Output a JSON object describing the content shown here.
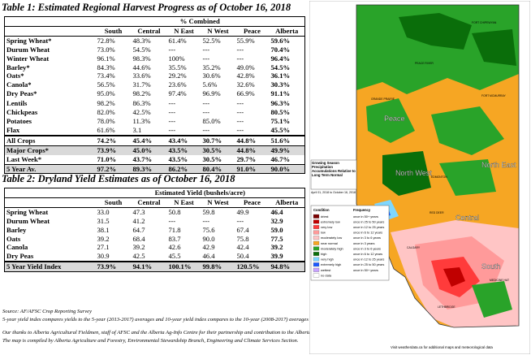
{
  "table1": {
    "title": "Table 1: Estimated Regional Harvest Progress as of October 16, 2018",
    "group_header": "% Combined",
    "columns": [
      "South",
      "Central",
      "N East",
      "N West",
      "Peace",
      "Alberta"
    ],
    "rows": [
      {
        "crop": "Spring Wheat*",
        "values": [
          "72.8%",
          "48.3%",
          "61.4%",
          "52.5%",
          "55.9%",
          "59.6%"
        ]
      },
      {
        "crop": "Durum Wheat",
        "values": [
          "73.0%",
          "54.5%",
          "---",
          "---",
          "---",
          "70.4%"
        ]
      },
      {
        "crop": "Winter Wheat",
        "values": [
          "96.1%",
          "98.3%",
          "100%",
          "---",
          "---",
          "96.4%"
        ]
      },
      {
        "crop": "Barley*",
        "values": [
          "84.3%",
          "44.6%",
          "35.5%",
          "35.2%",
          "49.0%",
          "54.5%"
        ]
      },
      {
        "crop": "Oats*",
        "values": [
          "73.4%",
          "33.6%",
          "29.2%",
          "30.6%",
          "42.8%",
          "36.1%"
        ]
      },
      {
        "crop": "Canola*",
        "values": [
          "56.5%",
          "31.7%",
          "23.6%",
          "5.6%",
          "32.6%",
          "30.3%"
        ]
      },
      {
        "crop": "Dry Peas*",
        "values": [
          "95.0%",
          "98.2%",
          "97.4%",
          "96.9%",
          "66.9%",
          "91.1%"
        ]
      },
      {
        "crop": "Lentils",
        "values": [
          "98.2%",
          "86.3%",
          "---",
          "---",
          "---",
          "96.3%"
        ]
      },
      {
        "crop": "Chickpeas",
        "values": [
          "82.0%",
          "42.5%",
          "---",
          "---",
          "---",
          "80.5%"
        ]
      },
      {
        "crop": "Potatoes",
        "values": [
          "78.0%",
          "11.3%",
          "---",
          "85.0%",
          "---",
          "75.1%"
        ]
      },
      {
        "crop": "Flax",
        "values": [
          "61.6%",
          "3.1",
          "---",
          "---",
          "---",
          "45.5%"
        ]
      }
    ],
    "totals": [
      {
        "label": "All Crops",
        "values": [
          "74.2%",
          "45.4%",
          "43.4%",
          "30.7%",
          "44.8%",
          "51.6%"
        ]
      },
      {
        "label": "Major Crops*",
        "values": [
          "73.9%",
          "45.0%",
          "43.5%",
          "30.5%",
          "44.8%",
          "49.9%"
        ]
      },
      {
        "label": "Last Week*",
        "values": [
          "71.0%",
          "43.7%",
          "43.5%",
          "30.5%",
          "29.7%",
          "46.7%"
        ]
      },
      {
        "label": "5 Year Av.",
        "values": [
          "97.2%",
          "89.3%",
          "86.2%",
          "80.4%",
          "91.0%",
          "90.0%"
        ]
      }
    ]
  },
  "table2": {
    "title": "Table 2: Dryland Yield Estimates as of October 16, 2018",
    "group_header": "Estimated Yield (bushels/acre)",
    "columns": [
      "South",
      "Central",
      "N East",
      "N West",
      "Peace",
      "Alberta"
    ],
    "rows": [
      {
        "crop": "Spring Wheat",
        "values": [
          "33.0",
          "47.3",
          "50.8",
          "59.8",
          "49.9",
          "46.4"
        ]
      },
      {
        "crop": "Durum Wheat",
        "values": [
          "31.5",
          "41.2",
          "---",
          "---",
          "---",
          "32.9"
        ]
      },
      {
        "crop": "Barley",
        "values": [
          "38.1",
          "64.7",
          "71.8",
          "75.6",
          "67.4",
          "59.0"
        ]
      },
      {
        "crop": "Oats",
        "values": [
          "39.2",
          "68.4",
          "83.7",
          "90.0",
          "75.8",
          "77.5"
        ]
      },
      {
        "crop": "Canola",
        "values": [
          "27.1",
          "39.2",
          "42.6",
          "42.9",
          "42.4",
          "39.2"
        ]
      },
      {
        "crop": "Dry Peas",
        "values": [
          "30.9",
          "42.5",
          "45.5",
          "46.4",
          "50.4",
          "39.9"
        ]
      }
    ],
    "index": {
      "label": "5 Year Yield Index",
      "values": [
        "73.9%",
        "94.1%",
        "100.1%",
        "99.8%",
        "120.5%",
        "94.8%"
      ]
    }
  },
  "notes": {
    "source": "Source: AF/AFSC Crop Reporting Survey",
    "index_note": "5-year yield index compares yields to the 5-year (2013-2017) averages and 10-year yield index compares to the 10-year (2008-2017) averages",
    "thanks": "Our thanks to Alberta Agricultural Fieldmen, staff of AFSC and the Alberta Ag-Info Centre for their partnership and contribution to the Alberta Crop Reporting Program.",
    "compiled": "The map is compiled by Alberta Agriculture and Forestry, Environmental Stewardship Branch, Engineering and Climate Services Section."
  },
  "map": {
    "region_labels": [
      "Peace",
      "North West",
      "North East",
      "Central",
      "South"
    ],
    "legend_title": "Growing Season Precipitation Accumulations Relative to Long Term Normal",
    "legend_date": "April 01, 2018 to October 16, 2018",
    "legend_col1": "Condition",
    "legend_col2": "Frequency",
    "legend_items": [
      {
        "condition": "driest",
        "frequency": "once in 50+ years",
        "color": "#7a0000"
      },
      {
        "condition": "extremely low",
        "frequency": "once in 25 to 50 years",
        "color": "#c00000"
      },
      {
        "condition": "very low",
        "frequency": "once in 12 to 25 years",
        "color": "#ff3b3b"
      },
      {
        "condition": "low",
        "frequency": "once in 6 to 12 years",
        "color": "#ff9a9a"
      },
      {
        "condition": "moderately low",
        "frequency": "once in 3 to 6 years",
        "color": "#ffc5c5"
      },
      {
        "condition": "near normal",
        "frequency": "once in 3 years",
        "color": "#f6a623"
      },
      {
        "condition": "moderately high",
        "frequency": "once in 3 to 6 years",
        "color": "#29a329"
      },
      {
        "condition": "high",
        "frequency": "once in 6 to 12 years",
        "color": "#0a6e0a"
      },
      {
        "condition": "very high",
        "frequency": "once in 12 to 25 years",
        "color": "#7fd7ff"
      },
      {
        "condition": "extremely high",
        "frequency": "once in 25 to 50 years",
        "color": "#1a58ff"
      },
      {
        "condition": "wettest",
        "frequency": "once in 50+ years",
        "color": "#c8a2ff"
      },
      {
        "condition": "no data",
        "frequency": "",
        "color": "#ffffff"
      }
    ],
    "footer": "Visit weatherdata.ca for additional maps and meteorological data",
    "place_labels": [
      "PEACE RIVER",
      "GRANDE PRAIRIE",
      "FORT MCMURRAY",
      "FORT CHIPEWYAN",
      "EDMONTON",
      "RED DEER",
      "CALGARY",
      "LETHBRIDGE",
      "MEDICINE HAT"
    ]
  }
}
